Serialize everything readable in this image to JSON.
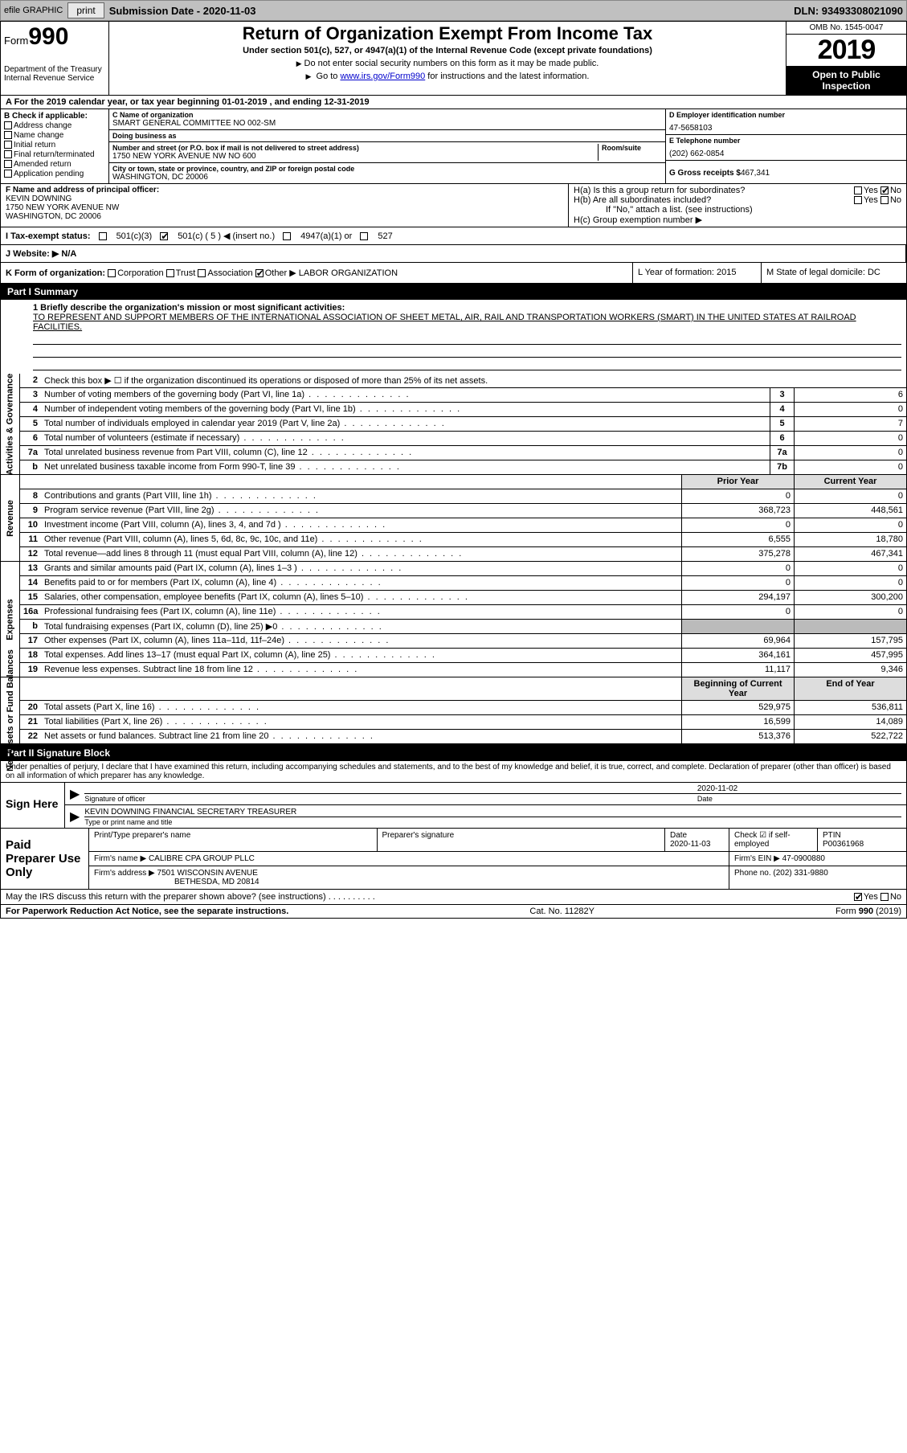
{
  "toolbar": {
    "efile": "efile GRAPHIC",
    "print": "print",
    "sub_label": "Submission Date - 2020-11-03",
    "dln": "DLN: 93493308021090"
  },
  "header": {
    "form_word": "Form",
    "form_num": "990",
    "dept": "Department of the Treasury Internal Revenue Service",
    "title": "Return of Organization Exempt From Income Tax",
    "subtitle": "Under section 501(c), 527, or 4947(a)(1) of the Internal Revenue Code (except private foundations)",
    "note1": "Do not enter social security numbers on this form as it may be made public.",
    "note2_pre": "Go to ",
    "note2_link": "www.irs.gov/Form990",
    "note2_post": " for instructions and the latest information.",
    "omb": "OMB No. 1545-0047",
    "year": "2019",
    "inspect1": "Open to Public",
    "inspect2": "Inspection"
  },
  "row_a": "A For the 2019 calendar year, or tax year beginning 01-01-2019   , and ending 12-31-2019",
  "col_b": {
    "label": "B Check if applicable:",
    "items": [
      "Address change",
      "Name change",
      "Initial return",
      "Final return/terminated",
      "Amended return",
      "Application pending"
    ]
  },
  "col_c": {
    "name_lbl": "C Name of organization",
    "name": "SMART GENERAL COMMITTEE NO 002-SM",
    "dba_lbl": "Doing business as",
    "dba": "",
    "addr_lbl": "Number and street (or P.O. box if mail is not delivered to street address)",
    "room_lbl": "Room/suite",
    "addr": "1750 NEW YORK AVENUE NW NO 600",
    "city_lbl": "City or town, state or province, country, and ZIP or foreign postal code",
    "city": "WASHINGTON, DC  20006"
  },
  "col_d": {
    "ein_lbl": "D Employer identification number",
    "ein": "47-5658103",
    "tel_lbl": "E Telephone number",
    "tel": "(202) 662-0854",
    "gross_lbl": "G Gross receipts $",
    "gross": "467,341"
  },
  "row_f": {
    "lbl": "F  Name and address of principal officer:",
    "name": "KEVIN DOWNING",
    "addr1": "1750 NEW YORK AVENUE NW",
    "addr2": "WASHINGTON, DC  20006"
  },
  "row_h": {
    "ha": "H(a)  Is this a group return for subordinates?",
    "hb": "H(b)  Are all subordinates included?",
    "hb_note": "If \"No,\" attach a list. (see instructions)",
    "hc": "H(c)  Group exemption number ▶",
    "yes": "Yes",
    "no": "No"
  },
  "row_i": {
    "lbl": "I   Tax-exempt status:",
    "o1": "501(c)(3)",
    "o2": "501(c) ( 5 ) ◀ (insert no.)",
    "o3": "4947(a)(1) or",
    "o4": "527"
  },
  "row_j": {
    "lbl": "J   Website: ▶",
    "val": "N/A"
  },
  "row_k": {
    "k": "K Form of organization:",
    "k_opts": [
      "Corporation",
      "Trust",
      "Association",
      "Other ▶"
    ],
    "k_other": "LABOR ORGANIZATION",
    "l": "L Year of formation: 2015",
    "m": "M State of legal domicile: DC"
  },
  "part1": {
    "hdr": "Part I     Summary",
    "q1_lbl": "1  Briefly describe the organization's mission or most significant activities:",
    "q1_text": "TO REPRESENT AND SUPPORT MEMBERS OF THE INTERNATIONAL ASSOCIATION OF SHEET METAL, AIR, RAIL AND TRANSPORTATION WORKERS (SMART) IN THE UNITED STATES AT RAILROAD FACILITIES.",
    "q2": "Check this box ▶ ☐  if the organization discontinued its operations or disposed of more than 25% of its net assets.",
    "side_act": "Activities & Governance",
    "side_rev": "Revenue",
    "side_exp": "Expenses",
    "side_net": "Net Assets or Fund Balances",
    "rows_gov": [
      {
        "n": "3",
        "d": "Number of voting members of the governing body (Part VI, line 1a)",
        "b": "3",
        "v": "6"
      },
      {
        "n": "4",
        "d": "Number of independent voting members of the governing body (Part VI, line 1b)",
        "b": "4",
        "v": "0"
      },
      {
        "n": "5",
        "d": "Total number of individuals employed in calendar year 2019 (Part V, line 2a)",
        "b": "5",
        "v": "7"
      },
      {
        "n": "6",
        "d": "Total number of volunteers (estimate if necessary)",
        "b": "6",
        "v": "0"
      },
      {
        "n": "7a",
        "d": "Total unrelated business revenue from Part VIII, column (C), line 12",
        "b": "7a",
        "v": "0"
      },
      {
        "n": "b",
        "d": "Net unrelated business taxable income from Form 990-T, line 39",
        "b": "7b",
        "v": "0"
      }
    ],
    "hdr_prior": "Prior Year",
    "hdr_curr": "Current Year",
    "rows_rev": [
      {
        "n": "8",
        "d": "Contributions and grants (Part VIII, line 1h)",
        "p": "0",
        "c": "0"
      },
      {
        "n": "9",
        "d": "Program service revenue (Part VIII, line 2g)",
        "p": "368,723",
        "c": "448,561"
      },
      {
        "n": "10",
        "d": "Investment income (Part VIII, column (A), lines 3, 4, and 7d )",
        "p": "0",
        "c": "0"
      },
      {
        "n": "11",
        "d": "Other revenue (Part VIII, column (A), lines 5, 6d, 8c, 9c, 10c, and 11e)",
        "p": "6,555",
        "c": "18,780"
      },
      {
        "n": "12",
        "d": "Total revenue—add lines 8 through 11 (must equal Part VIII, column (A), line 12)",
        "p": "375,278",
        "c": "467,341"
      }
    ],
    "rows_exp": [
      {
        "n": "13",
        "d": "Grants and similar amounts paid (Part IX, column (A), lines 1–3 )",
        "p": "0",
        "c": "0"
      },
      {
        "n": "14",
        "d": "Benefits paid to or for members (Part IX, column (A), line 4)",
        "p": "0",
        "c": "0"
      },
      {
        "n": "15",
        "d": "Salaries, other compensation, employee benefits (Part IX, column (A), lines 5–10)",
        "p": "294,197",
        "c": "300,200"
      },
      {
        "n": "16a",
        "d": "Professional fundraising fees (Part IX, column (A), line 11e)",
        "p": "0",
        "c": "0"
      },
      {
        "n": "b",
        "d": "Total fundraising expenses (Part IX, column (D), line 25) ▶0",
        "p": "",
        "c": "",
        "shade": true
      },
      {
        "n": "17",
        "d": "Other expenses (Part IX, column (A), lines 11a–11d, 11f–24e)",
        "p": "69,964",
        "c": "157,795"
      },
      {
        "n": "18",
        "d": "Total expenses. Add lines 13–17 (must equal Part IX, column (A), line 25)",
        "p": "364,161",
        "c": "457,995"
      },
      {
        "n": "19",
        "d": "Revenue less expenses. Subtract line 18 from line 12",
        "p": "11,117",
        "c": "9,346"
      }
    ],
    "hdr_beg": "Beginning of Current Year",
    "hdr_end": "End of Year",
    "rows_net": [
      {
        "n": "20",
        "d": "Total assets (Part X, line 16)",
        "p": "529,975",
        "c": "536,811"
      },
      {
        "n": "21",
        "d": "Total liabilities (Part X, line 26)",
        "p": "16,599",
        "c": "14,089"
      },
      {
        "n": "22",
        "d": "Net assets or fund balances. Subtract line 21 from line 20",
        "p": "513,376",
        "c": "522,722"
      }
    ]
  },
  "part2": {
    "hdr": "Part II     Signature Block",
    "penalty": "Under penalties of perjury, I declare that I have examined this return, including accompanying schedules and statements, and to the best of my knowledge and belief, it is true, correct, and complete. Declaration of preparer (other than officer) is based on all information of which preparer has any knowledge.",
    "sign_here": "Sign Here",
    "sig_officer_lbl": "Signature of officer",
    "sig_date": "2020-11-02",
    "sig_date_lbl": "Date",
    "officer_name": "KEVIN DOWNING  FINANCIAL SECRETARY TREASURER",
    "officer_name_lbl": "Type or print name and title",
    "paid_prep": "Paid Preparer Use Only",
    "pname_lbl": "Print/Type preparer's name",
    "psig_lbl": "Preparer's signature",
    "pdate_lbl": "Date",
    "pdate": "2020-11-03",
    "pcheck_lbl": "Check ☑ if self-employed",
    "ptin_lbl": "PTIN",
    "ptin": "P00361968",
    "firm_name_lbl": "Firm's name    ▶",
    "firm_name": "CALIBRE CPA GROUP PLLC",
    "firm_ein_lbl": "Firm's EIN ▶",
    "firm_ein": "47-0900880",
    "firm_addr_lbl": "Firm's address ▶",
    "firm_addr": "7501 WISCONSIN AVENUE",
    "firm_city": "BETHESDA, MD  20814",
    "phone_lbl": "Phone no.",
    "phone": "(202) 331-9880",
    "discuss": "May the IRS discuss this return with the preparer shown above? (see instructions)",
    "paperwork": "For Paperwork Reduction Act Notice, see the separate instructions.",
    "cat": "Cat. No. 11282Y",
    "form_foot": "Form 990 (2019)"
  }
}
